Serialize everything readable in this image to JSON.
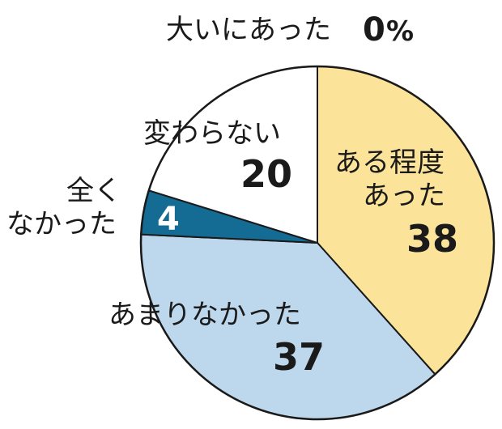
{
  "chart_data": {
    "type": "pie",
    "unit": "%",
    "slices": [
      {
        "label": "大いにあった",
        "value": 0,
        "color": "#ffffff"
      },
      {
        "label_lines": [
          "ある程度",
          "あった"
        ],
        "label": "ある程度あった",
        "value": 38,
        "color": "#fbe39a"
      },
      {
        "label": "あまりなかった",
        "value": 37,
        "color": "#bdd8ec"
      },
      {
        "label_lines": [
          "全く",
          "なかった"
        ],
        "label": "全くなかった",
        "value": 4,
        "color": "#146c94"
      },
      {
        "label": "変わらない",
        "value": 20,
        "color": "#ffffff"
      }
    ]
  }
}
